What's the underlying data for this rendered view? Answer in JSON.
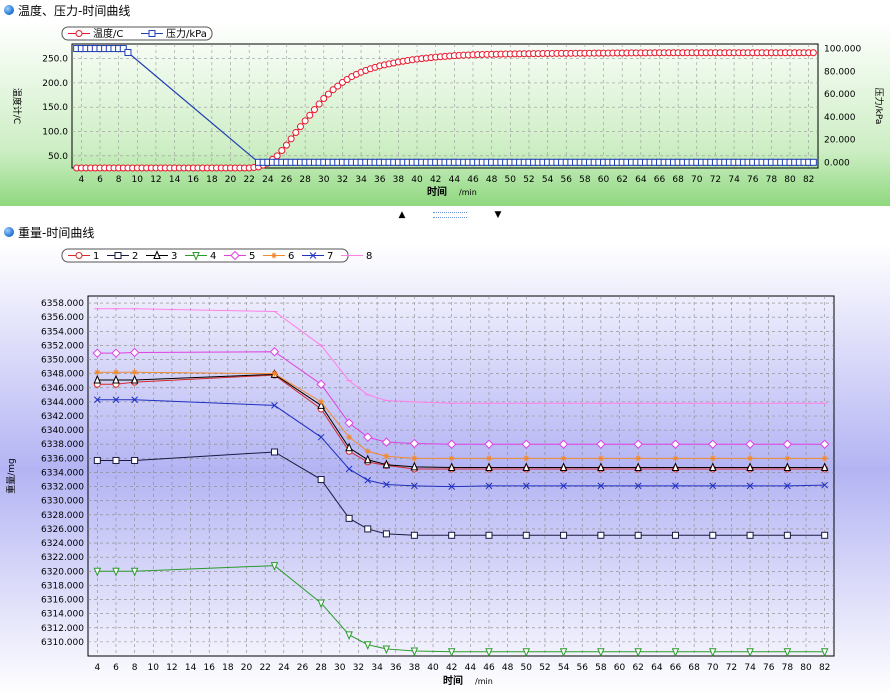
{
  "sections": {
    "top_title": "温度、压力-时间曲线",
    "bottom_title": "重量-时间曲线"
  },
  "chart_data": [
    {
      "type": "line",
      "xlabel": "时间",
      "xlabel_unit": "/min",
      "ylabel": "温度计/C",
      "y2label": "压力/kPa",
      "xlim": [
        3,
        83
      ],
      "ylim": [
        25,
        280
      ],
      "y2lim": [
        -5,
        104
      ],
      "xticks": [
        4,
        6,
        8,
        10,
        12,
        14,
        16,
        18,
        20,
        22,
        24,
        26,
        28,
        30,
        32,
        34,
        36,
        38,
        40,
        42,
        44,
        46,
        48,
        50,
        52,
        54,
        56,
        58,
        60,
        62,
        64,
        66,
        68,
        70,
        72,
        74,
        76,
        78,
        80,
        82
      ],
      "yticks": [
        50,
        100,
        150,
        200,
        250
      ],
      "ytick_labels": [
        "50.0",
        "100.0",
        "150.0",
        "200.0",
        "250.0"
      ],
      "y2ticks": [
        0,
        20,
        40,
        60,
        80,
        100
      ],
      "y2tick_labels": [
        "0.000",
        "20.000",
        "40.000",
        "60.000",
        "80.000",
        "100.000"
      ],
      "grid": true,
      "legend_position": "top-left",
      "series": [
        {
          "name": "温度/C",
          "axis": "left",
          "color": "#e8192c",
          "marker": "circle",
          "x": [
            3.5,
            8,
            9,
            22,
            23,
            24,
            25,
            26,
            27,
            28,
            29,
            30,
            31,
            32,
            33,
            34,
            35,
            36,
            38,
            40,
            42,
            44,
            46,
            50,
            54,
            58,
            62,
            66,
            70,
            74,
            78,
            82.5
          ],
          "values": [
            25,
            25,
            25,
            25,
            27,
            35,
            50,
            72,
            98,
            122,
            145,
            168,
            186,
            201,
            213,
            222,
            229,
            235,
            243,
            249,
            253,
            256,
            258,
            259.5,
            260.5,
            261,
            261.5,
            262,
            262,
            262,
            262,
            262
          ]
        },
        {
          "name": "压力/kPa",
          "axis": "right",
          "color": "#1f3fb3",
          "marker": "square",
          "x": [
            3.5,
            8.5,
            23,
            24,
            25,
            82.5
          ],
          "values": [
            100,
            100,
            0,
            0,
            0,
            0
          ]
        }
      ]
    },
    {
      "type": "line",
      "xlabel": "时间",
      "xlabel_unit": "/min",
      "ylabel": "重量/mg",
      "xlim": [
        3,
        83
      ],
      "ylim": [
        6308,
        6359
      ],
      "xticks": [
        4,
        6,
        8,
        10,
        12,
        14,
        16,
        18,
        20,
        22,
        24,
        26,
        28,
        30,
        32,
        34,
        36,
        38,
        40,
        42,
        44,
        46,
        48,
        50,
        52,
        54,
        56,
        58,
        60,
        62,
        64,
        66,
        68,
        70,
        72,
        74,
        76,
        78,
        80,
        82
      ],
      "yticks": [
        6310,
        6312,
        6314,
        6316,
        6318,
        6320,
        6322,
        6324,
        6326,
        6328,
        6330,
        6332,
        6334,
        6336,
        6338,
        6340,
        6342,
        6344,
        6346,
        6348,
        6350,
        6352,
        6354,
        6356,
        6358
      ],
      "ytick_labels": [
        "6310.000",
        "6312.000",
        "6314.000",
        "6316.000",
        "6318.000",
        "6320.000",
        "6322.000",
        "6324.000",
        "6326.000",
        "6328.000",
        "6330.000",
        "6332.000",
        "6334.000",
        "6336.000",
        "6338.000",
        "6340.000",
        "6342.000",
        "6344.000",
        "6346.000",
        "6348.000",
        "6350.000",
        "6352.000",
        "6354.000",
        "6356.000",
        "6358.000"
      ],
      "grid": true,
      "legend_position": "top-left",
      "x": [
        4,
        6,
        8,
        23,
        28,
        31,
        33,
        35,
        38,
        42,
        46,
        50,
        54,
        58,
        62,
        66,
        70,
        74,
        78,
        82
      ],
      "series": [
        {
          "name": "1",
          "color": "#d42a2a",
          "marker": "circle",
          "values": [
            6346.5,
            6346.5,
            6346.8,
            6347.8,
            6343.0,
            6337.0,
            6335.5,
            6335.0,
            6334.5,
            6334.5,
            6334.5,
            6334.5,
            6334.5,
            6334.5,
            6334.5,
            6334.5,
            6334.5,
            6334.5,
            6334.5,
            6334.5
          ]
        },
        {
          "name": "2",
          "color": "#1a1a40",
          "marker": "square",
          "values": [
            6335.7,
            6335.7,
            6335.7,
            6336.9,
            6333.0,
            6327.5,
            6326.0,
            6325.3,
            6325.1,
            6325.1,
            6325.1,
            6325.1,
            6325.1,
            6325.1,
            6325.1,
            6325.1,
            6325.1,
            6325.1,
            6325.1,
            6325.1
          ]
        },
        {
          "name": "3",
          "color": "#000000",
          "marker": "triangle",
          "values": [
            6347.1,
            6347.1,
            6347.1,
            6347.9,
            6343.5,
            6337.5,
            6335.8,
            6335.1,
            6334.8,
            6334.7,
            6334.7,
            6334.7,
            6334.7,
            6334.7,
            6334.7,
            6334.7,
            6334.7,
            6334.7,
            6334.7,
            6334.7
          ]
        },
        {
          "name": "4",
          "color": "#2a9a2a",
          "marker": "triangle-down",
          "values": [
            6320.0,
            6320.0,
            6320.0,
            6320.8,
            6315.5,
            6311.0,
            6309.6,
            6309.0,
            6308.7,
            6308.6,
            6308.6,
            6308.6,
            6308.6,
            6308.6,
            6308.6,
            6308.6,
            6308.6,
            6308.6,
            6308.6,
            6308.6
          ]
        },
        {
          "name": "5",
          "color": "#e040e0",
          "marker": "diamond",
          "values": [
            6350.9,
            6350.9,
            6351.0,
            6351.1,
            6346.5,
            6341.0,
            6339.0,
            6338.3,
            6338.1,
            6338.0,
            6338.0,
            6338.0,
            6338.0,
            6338.0,
            6338.0,
            6338.0,
            6338.0,
            6338.0,
            6338.0,
            6338.0
          ]
        },
        {
          "name": "6",
          "color": "#f08a30",
          "marker": "star",
          "values": [
            6348.2,
            6348.2,
            6348.2,
            6348.0,
            6344.0,
            6339.0,
            6337.0,
            6336.3,
            6336.0,
            6336.0,
            6336.0,
            6336.0,
            6336.0,
            6336.0,
            6336.0,
            6336.0,
            6336.0,
            6336.0,
            6336.0,
            6336.0
          ]
        },
        {
          "name": "7",
          "color": "#2030c0",
          "marker": "x",
          "values": [
            6344.3,
            6344.3,
            6344.3,
            6343.5,
            6339.0,
            6334.5,
            6332.9,
            6332.3,
            6332.1,
            6332.0,
            6332.1,
            6332.1,
            6332.1,
            6332.1,
            6332.1,
            6332.1,
            6332.1,
            6332.1,
            6332.1,
            6332.2
          ]
        },
        {
          "name": "8",
          "color": "#ff80e8",
          "marker": "dash",
          "values": [
            6357.2,
            6357.2,
            6357.2,
            6356.8,
            6352.0,
            6347.0,
            6345.0,
            6344.2,
            6344.0,
            6343.8,
            6343.8,
            6343.8,
            6343.8,
            6343.8,
            6343.8,
            6343.8,
            6343.8,
            6343.8,
            6343.8,
            6343.8
          ]
        }
      ]
    }
  ]
}
